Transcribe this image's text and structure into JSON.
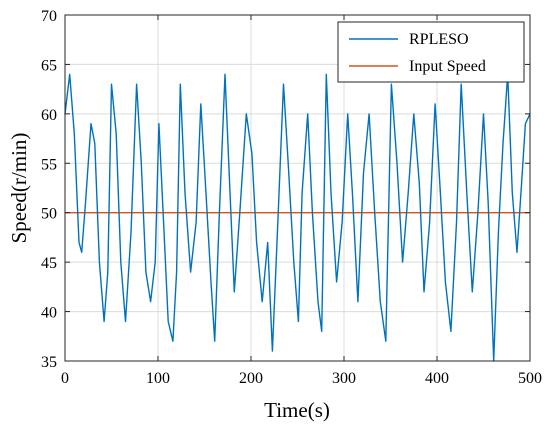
{
  "chart_data": {
    "type": "line",
    "xlabel": "Time(s)",
    "ylabel": "Speed(r/min)",
    "xlim": [
      0,
      500
    ],
    "ylim": [
      35,
      70
    ],
    "xticks": [
      0,
      100,
      200,
      300,
      400,
      500
    ],
    "yticks": [
      35,
      40,
      45,
      50,
      55,
      60,
      65,
      70
    ],
    "grid": true,
    "legend_position": "top-right",
    "series": [
      {
        "name": "RPLESO",
        "color": "#0072BD",
        "points": [
          [
            0,
            60
          ],
          [
            5,
            64
          ],
          [
            10,
            58
          ],
          [
            15,
            47
          ],
          [
            18,
            46
          ],
          [
            22,
            51
          ],
          [
            28,
            59
          ],
          [
            32,
            57
          ],
          [
            37,
            45
          ],
          [
            42,
            39
          ],
          [
            46,
            44
          ],
          [
            50,
            63
          ],
          [
            55,
            58
          ],
          [
            60,
            45
          ],
          [
            65,
            39
          ],
          [
            71,
            48
          ],
          [
            77,
            63
          ],
          [
            82,
            55
          ],
          [
            87,
            44
          ],
          [
            92,
            41
          ],
          [
            97,
            45
          ],
          [
            101,
            59
          ],
          [
            106,
            49
          ],
          [
            111,
            39
          ],
          [
            116,
            37
          ],
          [
            120,
            44
          ],
          [
            124,
            63
          ],
          [
            129,
            52
          ],
          [
            135,
            44
          ],
          [
            141,
            49
          ],
          [
            146,
            61
          ],
          [
            151,
            53
          ],
          [
            157,
            43
          ],
          [
            161,
            37
          ],
          [
            166,
            50
          ],
          [
            172,
            64
          ],
          [
            177,
            53
          ],
          [
            182,
            42
          ],
          [
            188,
            50
          ],
          [
            195,
            60
          ],
          [
            201,
            56
          ],
          [
            206,
            47
          ],
          [
            212,
            41
          ],
          [
            218,
            47
          ],
          [
            223,
            36
          ],
          [
            228,
            47
          ],
          [
            235,
            63
          ],
          [
            240,
            55
          ],
          [
            246,
            45
          ],
          [
            251,
            39
          ],
          [
            255,
            52
          ],
          [
            261,
            60
          ],
          [
            266,
            50
          ],
          [
            272,
            41
          ],
          [
            276,
            38
          ],
          [
            281,
            64
          ],
          [
            286,
            52
          ],
          [
            292,
            43
          ],
          [
            298,
            49
          ],
          [
            304,
            60
          ],
          [
            309,
            52
          ],
          [
            315,
            41
          ],
          [
            321,
            54
          ],
          [
            327,
            60
          ],
          [
            333,
            50
          ],
          [
            339,
            41
          ],
          [
            345,
            37
          ],
          [
            351,
            63
          ],
          [
            357,
            55
          ],
          [
            363,
            45
          ],
          [
            369,
            52
          ],
          [
            375,
            60
          ],
          [
            381,
            53
          ],
          [
            386,
            42
          ],
          [
            392,
            49
          ],
          [
            398,
            61
          ],
          [
            403,
            53
          ],
          [
            409,
            43
          ],
          [
            415,
            38
          ],
          [
            421,
            49
          ],
          [
            426,
            63
          ],
          [
            432,
            52
          ],
          [
            438,
            42
          ],
          [
            444,
            50
          ],
          [
            450,
            60
          ],
          [
            455,
            51
          ],
          [
            461,
            35
          ],
          [
            466,
            48
          ],
          [
            471,
            57
          ],
          [
            476,
            64
          ],
          [
            481,
            52
          ],
          [
            486,
            46
          ],
          [
            491,
            53
          ],
          [
            495,
            59
          ],
          [
            500,
            60
          ]
        ]
      },
      {
        "name": "Input Speed",
        "color": "#D95319",
        "points": [
          [
            0,
            50
          ],
          [
            500,
            50
          ]
        ]
      }
    ]
  }
}
